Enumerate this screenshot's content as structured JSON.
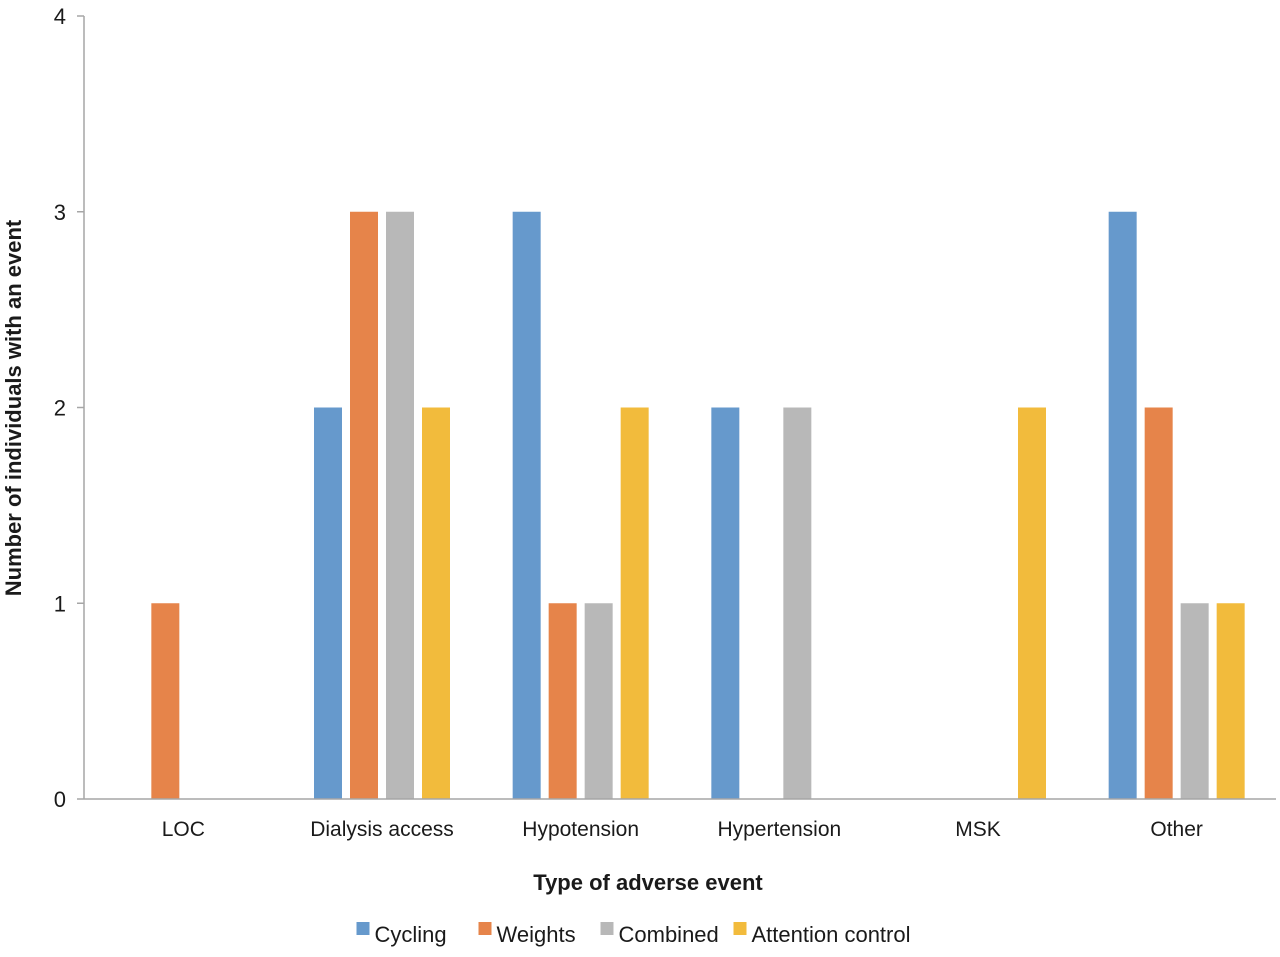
{
  "chart_data": {
    "type": "bar",
    "title": "",
    "xlabel": "Type of adverse event",
    "ylabel": "Number of individuals with an event",
    "ylim": [
      0,
      4
    ],
    "yticks": [
      "0",
      "1",
      "2",
      "3",
      "4"
    ],
    "categories": [
      "LOC",
      "Dialysis access",
      "Hypotension",
      "Hypertension",
      "MSK",
      "Other"
    ],
    "series": [
      {
        "name": "Cycling",
        "color": "#6699cc",
        "values": [
          0,
          2,
          3,
          2,
          0,
          3
        ]
      },
      {
        "name": "Weights",
        "color": "#e6844a",
        "values": [
          1,
          3,
          1,
          0,
          0,
          2
        ]
      },
      {
        "name": "Combined",
        "color": "#b8b8b8",
        "values": [
          0,
          3,
          1,
          2,
          0,
          1
        ]
      },
      {
        "name": "Attention control",
        "color": "#f2bb3c",
        "values": [
          0,
          2,
          2,
          0,
          2,
          1
        ]
      }
    ],
    "grid": false,
    "legend_position": "bottom"
  }
}
